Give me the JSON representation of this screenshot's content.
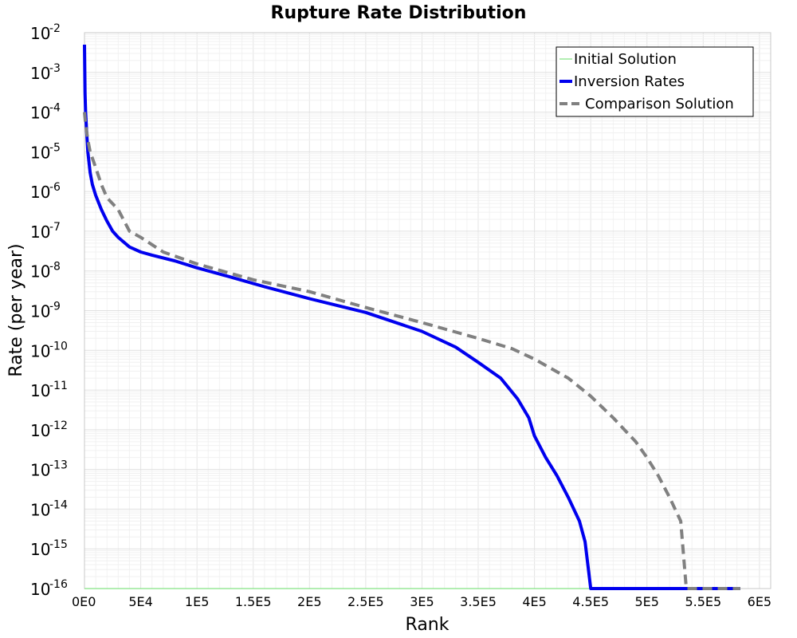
{
  "chart_data": {
    "type": "line",
    "title": "Rupture Rate Distribution",
    "xlabel": "Rank",
    "ylabel": "Rate (per year)",
    "xlim": [
      0,
      610000
    ],
    "ylim": [
      1e-16,
      0.01
    ],
    "y_scale": "log",
    "grid": true,
    "legend_position": "top-right",
    "x_ticks": [
      {
        "value": 0,
        "label": "0E0"
      },
      {
        "value": 50000,
        "label": "5E4"
      },
      {
        "value": 100000,
        "label": "1E5"
      },
      {
        "value": 150000,
        "label": "1.5E5"
      },
      {
        "value": 200000,
        "label": "2E5"
      },
      {
        "value": 250000,
        "label": "2.5E5"
      },
      {
        "value": 300000,
        "label": "3E5"
      },
      {
        "value": 350000,
        "label": "3.5E5"
      },
      {
        "value": 400000,
        "label": "4E5"
      },
      {
        "value": 450000,
        "label": "4.5E5"
      },
      {
        "value": 500000,
        "label": "5E5"
      },
      {
        "value": 550000,
        "label": "5.5E5"
      },
      {
        "value": 600000,
        "label": "6E5"
      }
    ],
    "y_ticks": [
      {
        "exp": -2,
        "base": "10",
        "sup": "-2"
      },
      {
        "exp": -3,
        "base": "10",
        "sup": "-3"
      },
      {
        "exp": -4,
        "base": "10",
        "sup": "-4"
      },
      {
        "exp": -5,
        "base": "10",
        "sup": "-5"
      },
      {
        "exp": -6,
        "base": "10",
        "sup": "-6"
      },
      {
        "exp": -7,
        "base": "10",
        "sup": "-7"
      },
      {
        "exp": -8,
        "base": "10",
        "sup": "-8"
      },
      {
        "exp": -9,
        "base": "10",
        "sup": "-9"
      },
      {
        "exp": -10,
        "base": "10",
        "sup": "-10"
      },
      {
        "exp": -11,
        "base": "10",
        "sup": "-11"
      },
      {
        "exp": -12,
        "base": "10",
        "sup": "-12"
      },
      {
        "exp": -13,
        "base": "10",
        "sup": "-13"
      },
      {
        "exp": -14,
        "base": "10",
        "sup": "-14"
      },
      {
        "exp": -15,
        "base": "10",
        "sup": "-15"
      },
      {
        "exp": -16,
        "base": "10",
        "sup": "-16"
      }
    ],
    "series": [
      {
        "name": "Initial Solution",
        "color": "#66dd66",
        "style": "solid",
        "x": [
          0,
          583000
        ],
        "y": [
          1e-16,
          1e-16
        ]
      },
      {
        "name": "Inversion Rates",
        "color": "#0000ee",
        "style": "solid",
        "x": [
          0,
          500,
          1000,
          2000,
          3000,
          5000,
          7000,
          10000,
          15000,
          20000,
          25000,
          30000,
          40000,
          50000,
          60000,
          80000,
          100000,
          130000,
          160000,
          200000,
          250000,
          300000,
          330000,
          350000,
          370000,
          385000,
          395000,
          400000,
          410000,
          420000,
          430000,
          440000,
          445000,
          450000,
          500000,
          550000,
          583000
        ],
        "y": [
          0.005,
          0.0003,
          0.0001,
          3e-05,
          1e-05,
          3e-06,
          1.5e-06,
          8e-07,
          3.5e-07,
          1.8e-07,
          1e-07,
          7e-08,
          4e-08,
          3e-08,
          2.5e-08,
          1.8e-08,
          1.2e-08,
          7e-09,
          4e-09,
          2e-09,
          9e-10,
          3e-10,
          1.2e-10,
          5e-11,
          2e-11,
          6e-12,
          2e-12,
          7e-13,
          2e-13,
          7e-14,
          2e-14,
          5e-15,
          1.5e-15,
          1e-16,
          1e-16,
          1e-16,
          1e-16
        ]
      },
      {
        "name": "Comparison Solution",
        "color": "#808080",
        "style": "dashed",
        "x": [
          0,
          1000,
          3000,
          5000,
          10000,
          15000,
          20000,
          30000,
          40000,
          50000,
          70000,
          100000,
          150000,
          200000,
          250000,
          300000,
          350000,
          380000,
          400000,
          430000,
          450000,
          470000,
          490000,
          500000,
          510000,
          520000,
          530000,
          535000,
          550000,
          583000
        ],
        "y": [
          0.0001,
          5e-05,
          2e-05,
          1e-05,
          4e-06,
          1.5e-06,
          7e-07,
          3.5e-07,
          1e-07,
          7e-08,
          3e-08,
          1.5e-08,
          6e-09,
          3e-09,
          1.2e-09,
          5e-10,
          2e-10,
          1.1e-10,
          6e-11,
          2e-11,
          7e-12,
          2e-12,
          5e-13,
          2e-13,
          7e-14,
          2e-14,
          5e-15,
          1e-16,
          1e-16,
          1e-16
        ]
      }
    ]
  }
}
